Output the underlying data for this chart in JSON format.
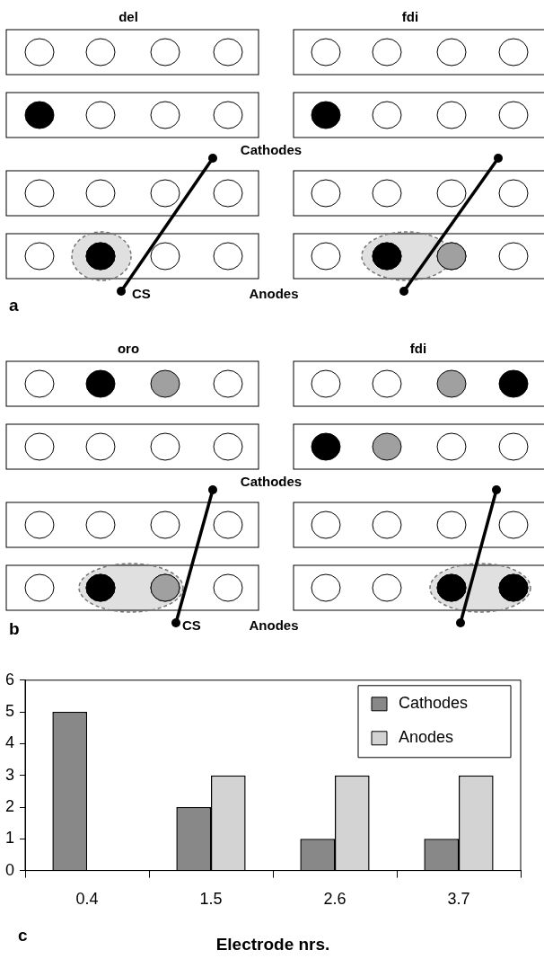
{
  "chart_data": {
    "type": "bar",
    "categories": [
      "0.4",
      "1.5",
      "2.6",
      "3.7"
    ],
    "series": [
      {
        "name": "Cathodes",
        "color": "#888888",
        "values": [
          5,
          2,
          1,
          1
        ]
      },
      {
        "name": "Anodes",
        "color": "#d3d3d3",
        "values": [
          0,
          3,
          3,
          3
        ]
      }
    ],
    "xlabel": "Electrode nrs.",
    "ylim": [
      0,
      6
    ],
    "yticks": [
      0,
      1,
      2,
      3,
      4,
      5,
      6
    ],
    "legend": "top right",
    "annotations": [
      "del",
      "fdi",
      "Cathodes",
      "Anodes",
      "CS",
      "a",
      "oro",
      "fdi",
      "Cathodes",
      "Anodes",
      "CS",
      "b",
      "c"
    ]
  }
}
